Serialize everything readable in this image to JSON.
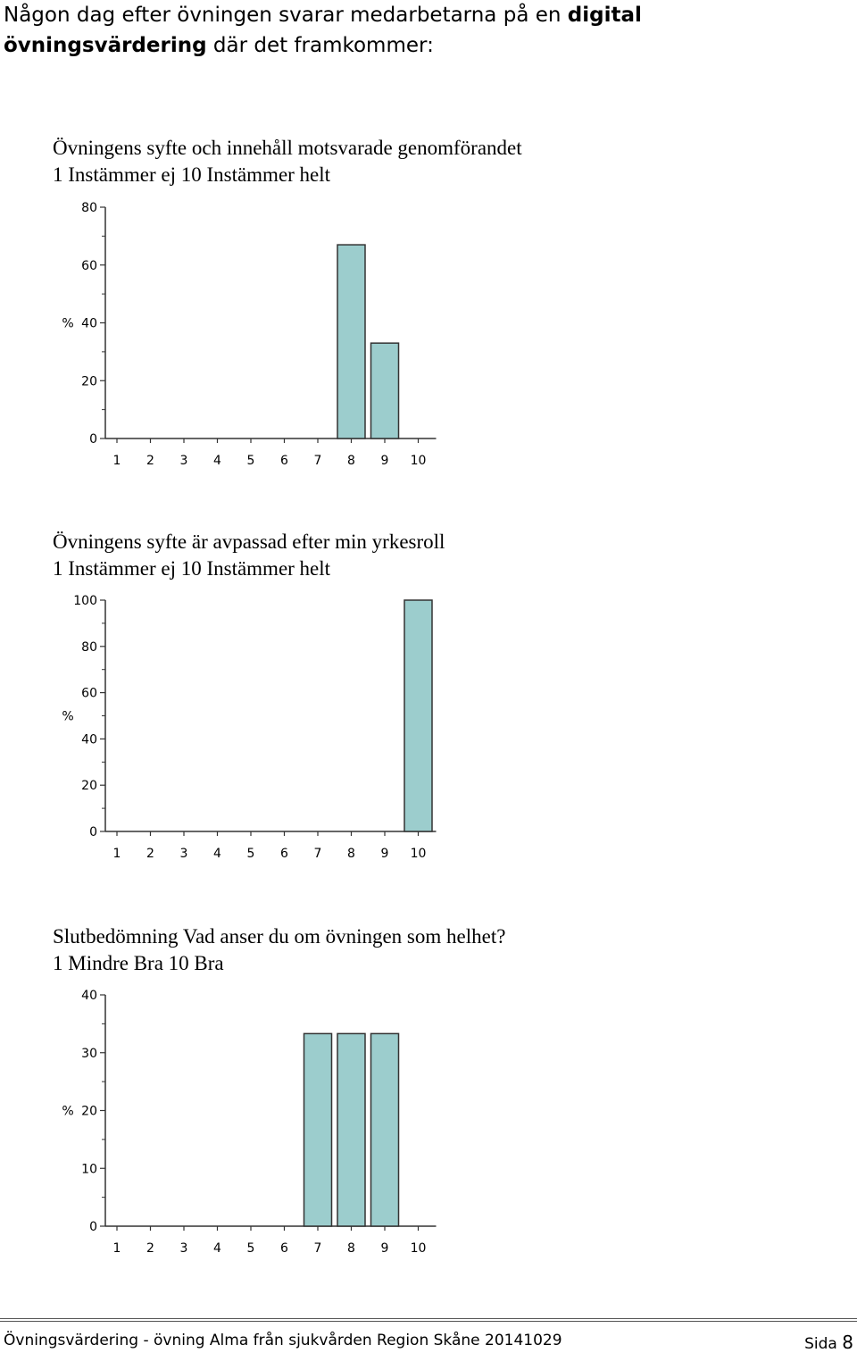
{
  "intro": {
    "prefix": "Någon dag efter övningen svarar medarbetarna på en",
    "bold_1": "digital",
    "bold_2": "övningsvärdering",
    "suffix": "där det framkommer:"
  },
  "questions": [
    {
      "title": "Övningens syfte och innehåll motsvarade genomförandet",
      "scale": "1 Instämmer ej 10 Instämmer helt"
    },
    {
      "title": "Övningens syfte är avpassad efter min yrkesroll",
      "scale": "1 Instämmer ej 10 Instämmer helt"
    },
    {
      "title": "Slutbedömning Vad anser du om övningen som helhet?",
      "scale": "1 Mindre Bra 10 Bra"
    }
  ],
  "chart_data": [
    {
      "type": "bar",
      "categories": [
        "1",
        "2",
        "3",
        "4",
        "5",
        "6",
        "7",
        "8",
        "9",
        "10"
      ],
      "values": [
        0,
        0,
        0,
        0,
        0,
        0,
        0,
        67,
        33,
        0
      ],
      "ylabel": "%",
      "ylim": [
        0,
        80
      ],
      "yticks": [
        0,
        20,
        40,
        60,
        80
      ],
      "bar_color": "#9ccdcd"
    },
    {
      "type": "bar",
      "categories": [
        "1",
        "2",
        "3",
        "4",
        "5",
        "6",
        "7",
        "8",
        "9",
        "10"
      ],
      "values": [
        0,
        0,
        0,
        0,
        0,
        0,
        0,
        0,
        0,
        100
      ],
      "ylabel": "%",
      "ylim": [
        0,
        100
      ],
      "yticks": [
        0,
        20,
        40,
        60,
        80,
        100
      ],
      "bar_color": "#9ccdcd"
    },
    {
      "type": "bar",
      "categories": [
        "1",
        "2",
        "3",
        "4",
        "5",
        "6",
        "7",
        "8",
        "9",
        "10"
      ],
      "values": [
        0,
        0,
        0,
        0,
        0,
        0,
        33.3,
        33.3,
        33.3,
        0
      ],
      "ylabel": "%",
      "ylim": [
        0,
        40
      ],
      "yticks": [
        0,
        10,
        20,
        30,
        40
      ],
      "bar_color": "#9ccdcd"
    }
  ],
  "footer": {
    "left": "Övningsvärdering - övning Alma från sjukvården Region Skåne 20141029",
    "right_label": "Sida",
    "right_number": "8"
  }
}
